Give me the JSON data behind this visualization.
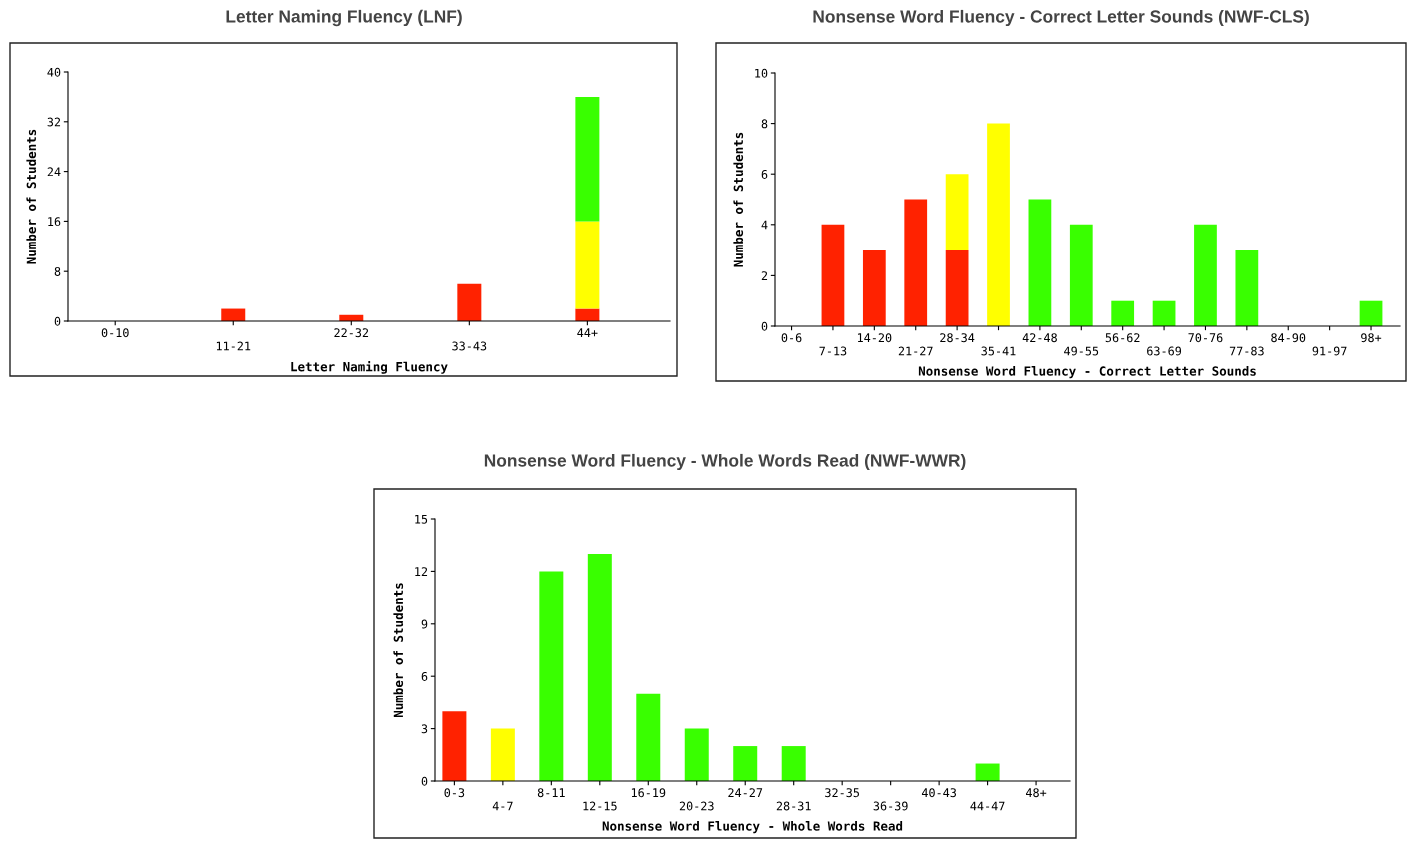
{
  "chart_data": [
    {
      "type": "bar",
      "title": "Letter Naming Fluency (LNF)",
      "xlabel": "Letter Naming Fluency",
      "ylabel": "Number of Students",
      "stacked": true,
      "categories": [
        "0-10",
        "11-21",
        "22-32",
        "33-43",
        "44+"
      ],
      "series": [
        {
          "color": "#ff2200",
          "values": [
            0,
            2,
            1,
            6,
            2
          ]
        },
        {
          "color": "#ffff00",
          "values": [
            0,
            0,
            0,
            0,
            14
          ]
        },
        {
          "color": "#39ff00",
          "values": [
            0,
            0,
            0,
            0,
            20
          ]
        }
      ],
      "ylim": [
        0,
        40
      ],
      "yticks": [
        0,
        8,
        16,
        24,
        32,
        40
      ],
      "grid": false
    },
    {
      "type": "bar",
      "title": "Nonsense Word Fluency - Correct Letter Sounds (NWF-CLS)",
      "xlabel": "Nonsense Word Fluency - Correct Letter Sounds",
      "ylabel": "Number of Students",
      "stacked": true,
      "categories": [
        "0-6",
        "7-13",
        "14-20",
        "21-27",
        "28-34",
        "35-41",
        "42-48",
        "49-55",
        "56-62",
        "63-69",
        "70-76",
        "77-83",
        "84-90",
        "91-97",
        "98+"
      ],
      "series": [
        {
          "color": "#ff2200",
          "values": [
            0,
            4,
            3,
            5,
            3,
            0,
            0,
            0,
            0,
            0,
            0,
            0,
            0,
            0,
            0
          ]
        },
        {
          "color": "#ffff00",
          "values": [
            0,
            0,
            0,
            0,
            3,
            8,
            0,
            0,
            0,
            0,
            0,
            0,
            0,
            0,
            0
          ]
        },
        {
          "color": "#39ff00",
          "values": [
            0,
            0,
            0,
            0,
            0,
            0,
            5,
            4,
            1,
            1,
            4,
            3,
            0,
            0,
            1
          ]
        }
      ],
      "ylim": [
        0,
        10
      ],
      "yticks": [
        0,
        2,
        4,
        6,
        8,
        10
      ],
      "grid": false
    },
    {
      "type": "bar",
      "title": "Nonsense Word Fluency - Whole Words Read (NWF-WWR)",
      "xlabel": "Nonsense Word Fluency - Whole Words Read",
      "ylabel": "Number of Students",
      "categories": [
        "0-3",
        "4-7",
        "8-11",
        "12-15",
        "16-19",
        "20-23",
        "24-27",
        "28-31",
        "32-35",
        "36-39",
        "40-43",
        "44-47",
        "48+"
      ],
      "values": [
        4,
        3,
        12,
        13,
        5,
        3,
        2,
        2,
        0,
        0,
        0,
        1,
        0
      ],
      "colors": [
        "#ff2200",
        "#ffff00",
        "#39ff00",
        "#39ff00",
        "#39ff00",
        "#39ff00",
        "#39ff00",
        "#39ff00",
        "#39ff00",
        "#39ff00",
        "#39ff00",
        "#39ff00",
        "#39ff00"
      ],
      "ylim": [
        0,
        15
      ],
      "yticks": [
        0,
        3,
        6,
        9,
        12,
        15
      ],
      "grid": false
    }
  ]
}
